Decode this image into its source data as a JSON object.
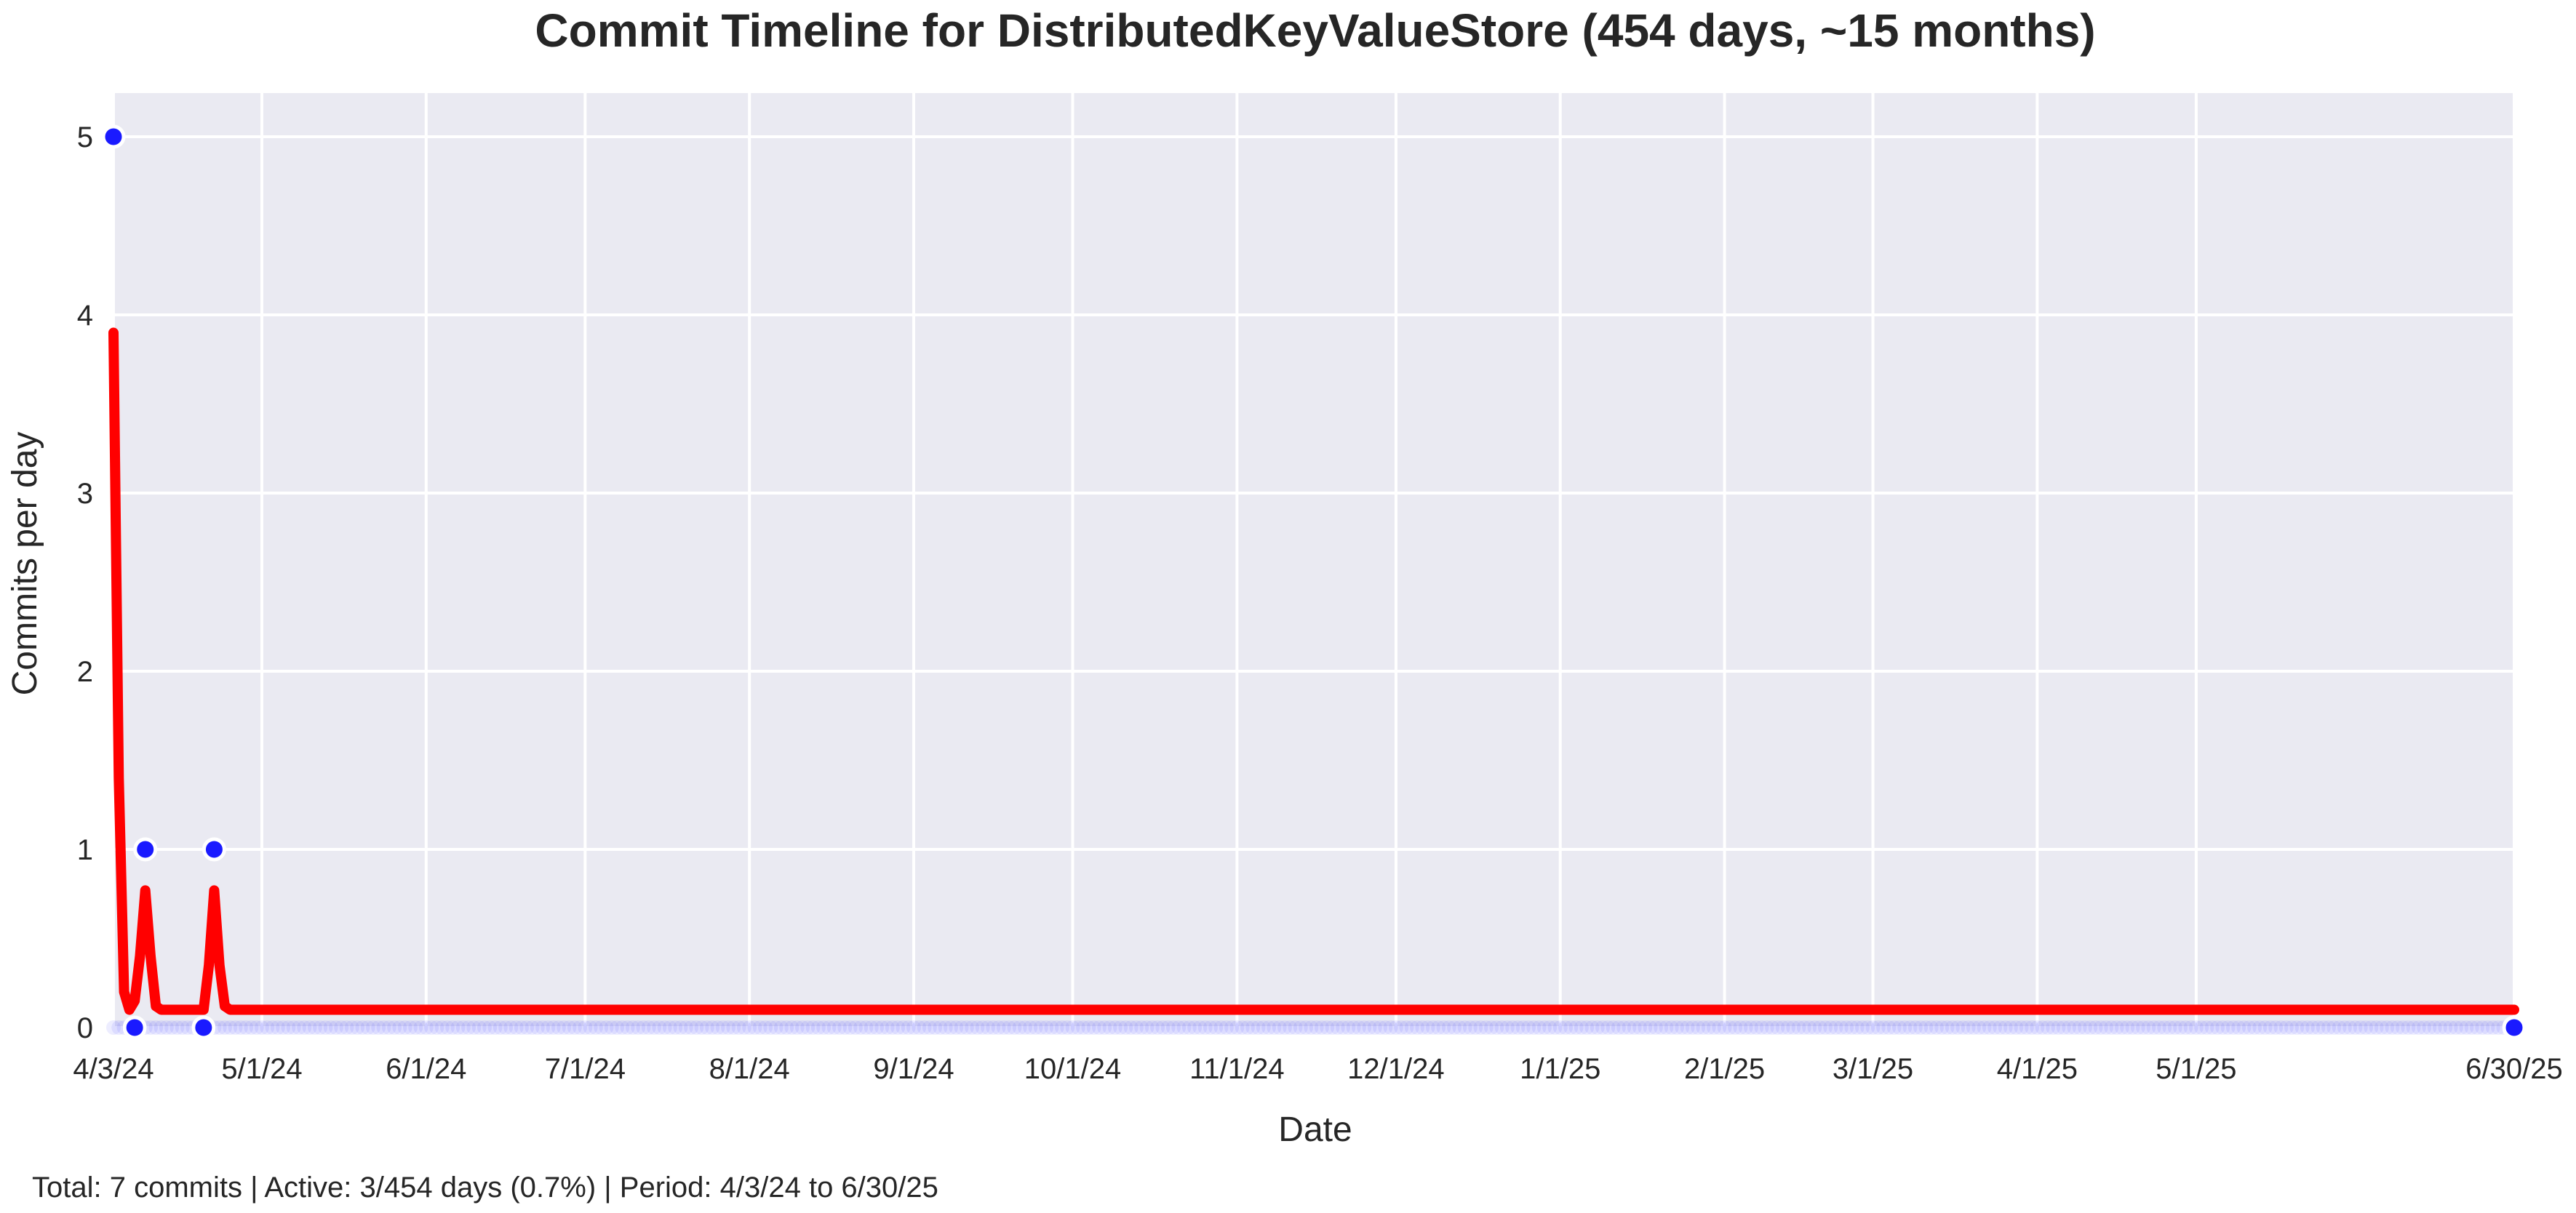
{
  "chart_data": {
    "type": "line",
    "title": "Commit Timeline for DistributedKeyValueStore (454 days, ~15 months)",
    "xlabel": "Date",
    "ylabel": "Commits per day",
    "x_range": [
      "2024-04-03",
      "2025-06-30"
    ],
    "ylim": [
      0,
      5.25
    ],
    "grid": true,
    "y_ticks": [
      0,
      1,
      2,
      3,
      4,
      5
    ],
    "x_ticks": [
      {
        "date": "2024-04-03",
        "label": "4/3/24"
      },
      {
        "date": "2024-05-01",
        "label": "5/1/24"
      },
      {
        "date": "2024-06-01",
        "label": "6/1/24"
      },
      {
        "date": "2024-07-01",
        "label": "7/1/24"
      },
      {
        "date": "2024-08-01",
        "label": "8/1/24"
      },
      {
        "date": "2024-09-01",
        "label": "9/1/24"
      },
      {
        "date": "2024-10-01",
        "label": "10/1/24"
      },
      {
        "date": "2024-11-01",
        "label": "11/1/24"
      },
      {
        "date": "2024-12-01",
        "label": "12/1/24"
      },
      {
        "date": "2025-01-01",
        "label": "1/1/25"
      },
      {
        "date": "2025-02-01",
        "label": "2/1/25"
      },
      {
        "date": "2025-03-01",
        "label": "3/1/25"
      },
      {
        "date": "2025-04-01",
        "label": "4/1/25"
      },
      {
        "date": "2025-05-01",
        "label": "5/1/25"
      },
      {
        "date": "2025-06-30",
        "label": "6/30/25"
      }
    ],
    "series": [
      {
        "kind": "daily_points",
        "color": "#1a1aff",
        "highlight_points": [
          {
            "x": "2024-04-03",
            "y": 5
          },
          {
            "x": "2024-04-09",
            "y": 1
          },
          {
            "x": "2024-04-22",
            "y": 1
          },
          {
            "x": "2024-04-07",
            "y": 0
          },
          {
            "x": "2024-04-20",
            "y": 0
          },
          {
            "x": "2025-06-30",
            "y": 0
          }
        ],
        "default_value": 0
      },
      {
        "kind": "smoothed_line",
        "color": "#ff0000",
        "points": [
          {
            "x": "2024-04-03",
            "y": 3.9
          },
          {
            "x": "2024-04-04",
            "y": 1.4
          },
          {
            "x": "2024-04-05",
            "y": 0.2
          },
          {
            "x": "2024-04-06",
            "y": 0.1
          },
          {
            "x": "2024-04-07",
            "y": 0.15
          },
          {
            "x": "2024-04-08",
            "y": 0.4
          },
          {
            "x": "2024-04-09",
            "y": 0.77
          },
          {
            "x": "2024-04-10",
            "y": 0.4
          },
          {
            "x": "2024-04-11",
            "y": 0.12
          },
          {
            "x": "2024-04-12",
            "y": 0.1
          },
          {
            "x": "2024-04-20",
            "y": 0.1
          },
          {
            "x": "2024-04-21",
            "y": 0.35
          },
          {
            "x": "2024-04-22",
            "y": 0.77
          },
          {
            "x": "2024-04-23",
            "y": 0.35
          },
          {
            "x": "2024-04-24",
            "y": 0.12
          },
          {
            "x": "2024-04-25",
            "y": 0.1
          },
          {
            "x": "2025-06-30",
            "y": 0.1
          }
        ]
      }
    ]
  },
  "footer": {
    "summary": "Total: 7 commits | Active: 3/454 days (0.7%) | Period: 4/3/24 to 6/30/25"
  },
  "colors": {
    "plot_background": "#eaeaf2",
    "grid": "#ffffff",
    "points": "#1a1aff",
    "line": "#ff0000"
  }
}
